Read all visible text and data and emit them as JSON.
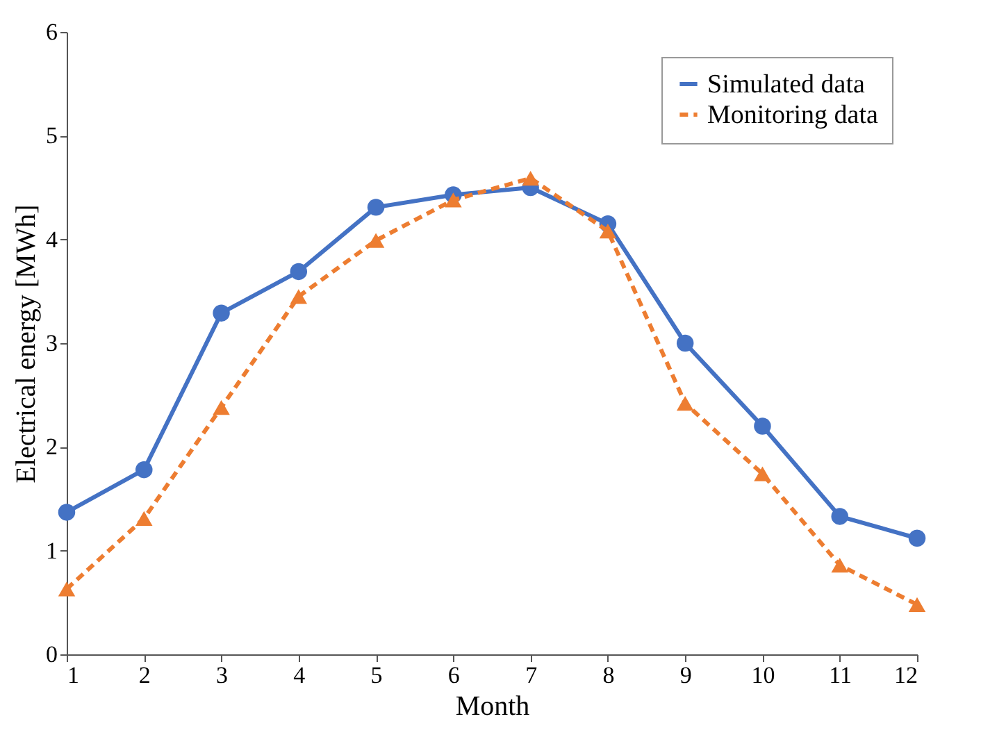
{
  "chart_data": {
    "type": "line",
    "xlabel": "Month",
    "ylabel": "Electrical energy  [MWh]",
    "x": [
      1,
      2,
      3,
      4,
      5,
      6,
      7,
      8,
      9,
      10,
      11,
      12
    ],
    "xlim": [
      1,
      12
    ],
    "xticks": [
      1,
      2,
      3,
      4,
      5,
      6,
      7,
      8,
      9,
      10,
      11,
      12
    ],
    "ylim": [
      0,
      6
    ],
    "yticks": [
      0,
      1,
      2,
      3,
      4,
      5,
      6
    ],
    "grid": false,
    "legend": "top right",
    "series": [
      {
        "name": "Simulated data",
        "color": "#4472c4",
        "marker": "circle",
        "line_style": "solid",
        "values": [
          1.37,
          1.78,
          3.29,
          3.69,
          4.31,
          4.43,
          4.5,
          4.15,
          3.0,
          2.2,
          1.33,
          1.12
        ]
      },
      {
        "name": "Monitoring data",
        "color": "#ed7d31",
        "marker": "triangle",
        "line_style": "dashed",
        "values": [
          0.63,
          1.31,
          2.38,
          3.45,
          3.99,
          4.38,
          4.59,
          4.08,
          2.42,
          1.74,
          0.86,
          0.48
        ]
      }
    ]
  }
}
